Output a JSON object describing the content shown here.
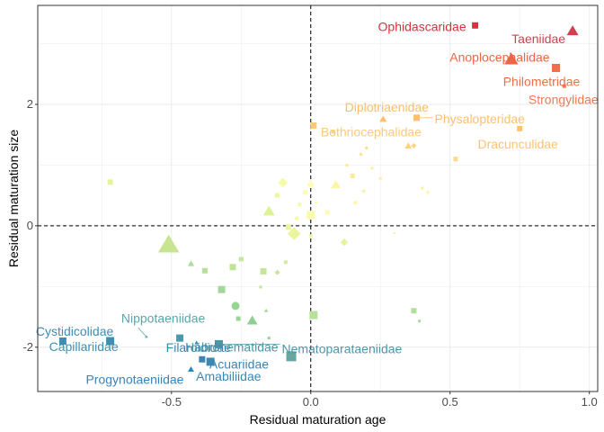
{
  "chart_data": {
    "type": "scatter",
    "xlabel": "Residual maturation age",
    "ylabel": "Residual maturation size",
    "xlim": [
      -0.98,
      1.03
    ],
    "ylim": [
      -2.73,
      3.63
    ],
    "xticks": [
      -0.5,
      0.0,
      0.5,
      1.0
    ],
    "xtick_labels": [
      "-0.5",
      "0.0",
      "0.5",
      "1.0"
    ],
    "yticks": [
      -2,
      0,
      2
    ],
    "ytick_labels": [
      "-2",
      "0",
      "2"
    ],
    "grid": true,
    "legend": "none",
    "reference_lines": {
      "x": 0,
      "y": 0,
      "style": "dashed"
    },
    "shape_note": "marker shape and size vary by point; color follows a red-yellow-blue gradient",
    "labeled_points": [
      {
        "label": "Ophidascaridae",
        "x": 0.59,
        "y": 3.3,
        "color": "#d7303f",
        "shape": "square",
        "size": 7
      },
      {
        "label": "Taeniidae",
        "x": 0.94,
        "y": 3.2,
        "color": "#d53e4f",
        "shape": "triangle",
        "size": 11
      },
      {
        "label": "Anoplocephalidae",
        "x": 0.72,
        "y": 2.73,
        "color": "#ee6445",
        "shape": "triangle",
        "size": 13
      },
      {
        "label": "Philometridae",
        "x": 0.88,
        "y": 2.6,
        "color": "#f06f4a",
        "shape": "square",
        "size": 9
      },
      {
        "label": "Strongylidae",
        "x": 0.91,
        "y": 2.3,
        "color": "#ef7a4e",
        "shape": "square",
        "size": 4
      },
      {
        "label": "Diplotriaenidae",
        "x": 0.26,
        "y": 1.75,
        "color": "#fdbd6b",
        "shape": "triangle",
        "size": 7
      },
      {
        "label": "Physalopteridae",
        "x": 0.38,
        "y": 1.78,
        "color": "#fdbf6f",
        "shape": "square",
        "size": 7
      },
      {
        "label": "Bothriocephalidae",
        "x": 0.01,
        "y": 1.65,
        "color": "#fec977",
        "shape": "square",
        "size": 7
      },
      {
        "label": "Dracunculidae",
        "x": 0.75,
        "y": 1.6,
        "color": "#fdc372",
        "shape": "square",
        "size": 6
      },
      {
        "label": "Nippotaeniidae",
        "x": -0.59,
        "y": -1.83,
        "color": "#5aa5ad",
        "shape": "triangle",
        "size": 3
      },
      {
        "label": "Habronematidae",
        "x": -0.47,
        "y": -1.85,
        "color": "#4a98ab",
        "shape": "square",
        "size": 8
      },
      {
        "label": "Cystidicolidae",
        "x": -0.89,
        "y": -1.9,
        "color": "#3c8eb5",
        "shape": "square",
        "size": 8
      },
      {
        "label": "Capillariidae",
        "x": -0.72,
        "y": -1.9,
        "color": "#3f8fb3",
        "shape": "square",
        "size": 9
      },
      {
        "label": "Filaroididae",
        "x": -0.41,
        "y": -1.93,
        "color": "#3d8ab0",
        "shape": "triangle",
        "size": 4
      },
      {
        "label": "Nematoparataeniidae",
        "x": -0.33,
        "y": -1.95,
        "color": "#4a97a8",
        "shape": "square",
        "size": 9
      },
      {
        "label": "Acuariidae",
        "x": -0.39,
        "y": -2.2,
        "color": "#3a85b5",
        "shape": "square",
        "size": 7
      },
      {
        "label": "Amabiliidae",
        "x": -0.36,
        "y": -2.24,
        "color": "#3d88b2",
        "shape": "square",
        "size": 9
      },
      {
        "label": "Progynotaeniidae",
        "x": -0.43,
        "y": -2.37,
        "color": "#3a82bb",
        "shape": "triangle",
        "size": 6
      },
      {
        "label": "",
        "x": -0.07,
        "y": -2.15,
        "color": "#66a6a1",
        "shape": "square",
        "size": 11
      }
    ],
    "unlabeled_points": [
      {
        "x": -0.51,
        "y": -0.33,
        "color": "#c7e590",
        "shape": "triangle",
        "size": 20
      },
      {
        "x": -0.72,
        "y": 0.72,
        "color": "#e8f29c",
        "shape": "square",
        "size": 6
      },
      {
        "x": -0.43,
        "y": -0.63,
        "color": "#a9dc94",
        "shape": "triangle",
        "size": 6
      },
      {
        "x": -0.38,
        "y": -0.74,
        "color": "#b5e095",
        "shape": "square",
        "size": 6
      },
      {
        "x": -0.32,
        "y": -1.05,
        "color": "#a2d898",
        "shape": "square",
        "size": 8
      },
      {
        "x": -0.28,
        "y": -0.68,
        "color": "#bfe395",
        "shape": "square",
        "size": 7
      },
      {
        "x": -0.25,
        "y": -0.55,
        "color": "#c8e699",
        "shape": "square",
        "size": 5
      },
      {
        "x": -0.27,
        "y": -1.32,
        "color": "#98d494",
        "shape": "circle",
        "size": 9
      },
      {
        "x": -0.26,
        "y": -1.53,
        "color": "#9bd595",
        "shape": "square",
        "size": 5
      },
      {
        "x": -0.21,
        "y": -1.57,
        "color": "#8fcf93",
        "shape": "triangle",
        "size": 10
      },
      {
        "x": -0.18,
        "y": -1.01,
        "color": "#bde39b",
        "shape": "square",
        "size": 3
      },
      {
        "x": -0.17,
        "y": -0.75,
        "color": "#c6e596",
        "shape": "square",
        "size": 7
      },
      {
        "x": -0.16,
        "y": -1.4,
        "color": "#a9da97",
        "shape": "triangle",
        "size": 4
      },
      {
        "x": -0.15,
        "y": -1.85,
        "color": "#9ad098",
        "shape": "square",
        "size": 3
      },
      {
        "x": -0.15,
        "y": 0.23,
        "color": "#def297",
        "shape": "triangle",
        "size": 11
      },
      {
        "x": -0.12,
        "y": -0.77,
        "color": "#cbe798",
        "shape": "diamond",
        "size": 5
      },
      {
        "x": -0.12,
        "y": 0.5,
        "color": "#eef7a0",
        "shape": "square",
        "size": 5
      },
      {
        "x": -0.1,
        "y": 0.71,
        "color": "#f6fba7",
        "shape": "diamond",
        "size": 9
      },
      {
        "x": -0.09,
        "y": -0.6,
        "color": "#d4ec9a",
        "shape": "square",
        "size": 4
      },
      {
        "x": -0.08,
        "y": -0.02,
        "color": "#e9f59e",
        "shape": "square",
        "size": 6
      },
      {
        "x": -0.06,
        "y": -0.13,
        "color": "#eaf59c",
        "shape": "diamond",
        "size": 12
      },
      {
        "x": -0.05,
        "y": 0.12,
        "color": "#f5f8a5",
        "shape": "square",
        "size": 4
      },
      {
        "x": -0.04,
        "y": 0.35,
        "color": "#f4fba5",
        "shape": "square",
        "size": 4
      },
      {
        "x": -0.02,
        "y": 0.55,
        "color": "#fbfdae",
        "shape": "square",
        "size": 5
      },
      {
        "x": 0.0,
        "y": 0.18,
        "color": "#f8fcaa",
        "shape": "square",
        "size": 9
      },
      {
        "x": 0.0,
        "y": 0.68,
        "color": "#fffdb3",
        "shape": "diamond",
        "size": 7
      },
      {
        "x": 0.0,
        "y": -0.17,
        "color": "#f2f9a6",
        "shape": "square",
        "size": 4
      },
      {
        "x": 0.01,
        "y": -1.47,
        "color": "#b7e09b",
        "shape": "square",
        "size": 9
      },
      {
        "x": 0.02,
        "y": 0.38,
        "color": "#fcfcb0",
        "shape": "square",
        "size": 3
      },
      {
        "x": 0.06,
        "y": 0.22,
        "color": "#fdfab3",
        "shape": "square",
        "size": 5
      },
      {
        "x": 0.08,
        "y": 1.55,
        "color": "#fed27f",
        "shape": "square",
        "size": 4
      },
      {
        "x": 0.09,
        "y": 0.67,
        "color": "#fdf5a6",
        "shape": "triangle",
        "size": 9
      },
      {
        "x": 0.12,
        "y": -0.27,
        "color": "#e5f49a",
        "shape": "diamond",
        "size": 7
      },
      {
        "x": 0.13,
        "y": 1.0,
        "color": "#fde892",
        "shape": "square",
        "size": 3
      },
      {
        "x": 0.15,
        "y": 0.82,
        "color": "#fdea95",
        "shape": "square",
        "size": 5
      },
      {
        "x": 0.16,
        "y": 0.38,
        "color": "#fef6ad",
        "shape": "square",
        "size": 4
      },
      {
        "x": 0.19,
        "y": 0.57,
        "color": "#feef9f",
        "shape": "square",
        "size": 3
      },
      {
        "x": 0.18,
        "y": 1.18,
        "color": "#fee08b",
        "shape": "triangle",
        "size": 4
      },
      {
        "x": 0.2,
        "y": 1.28,
        "color": "#fedd87",
        "shape": "square",
        "size": 3
      },
      {
        "x": 0.22,
        "y": 0.95,
        "color": "#fdf0a0",
        "shape": "square",
        "size": 3
      },
      {
        "x": 0.25,
        "y": 0.78,
        "color": "#feeea0",
        "shape": "square",
        "size": 3
      },
      {
        "x": 0.3,
        "y": -0.12,
        "color": "#eaf69e",
        "shape": "square",
        "size": 2
      },
      {
        "x": 0.35,
        "y": 1.31,
        "color": "#fdd381",
        "shape": "triangle",
        "size": 7
      },
      {
        "x": 0.37,
        "y": 1.32,
        "color": "#fdd382",
        "shape": "diamond",
        "size": 5
      },
      {
        "x": 0.37,
        "y": -1.4,
        "color": "#b4df9a",
        "shape": "square",
        "size": 6
      },
      {
        "x": 0.39,
        "y": -1.57,
        "color": "#abdc99",
        "shape": "square",
        "size": 3
      },
      {
        "x": 0.4,
        "y": 0.62,
        "color": "#fdf0a2",
        "shape": "square",
        "size": 3
      },
      {
        "x": 0.42,
        "y": 0.55,
        "color": "#fef3a8",
        "shape": "square",
        "size": 3
      },
      {
        "x": 0.52,
        "y": 1.1,
        "color": "#fdd989",
        "shape": "square",
        "size": 5
      }
    ]
  }
}
